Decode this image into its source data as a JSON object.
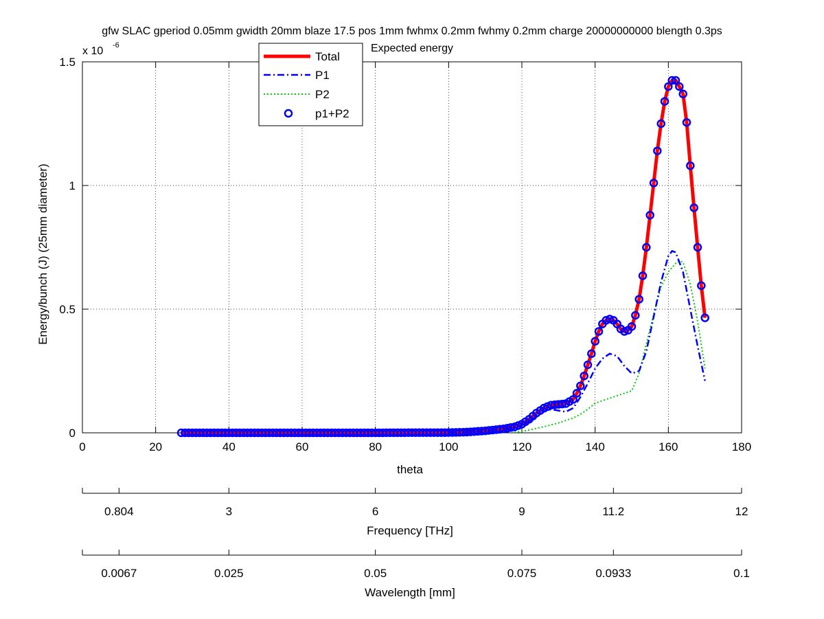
{
  "chart_data": {
    "type": "line",
    "title_line1": "gfw SLAC gperiod 0.05mm gwidth 20mm blaze 17.5 pos 1mm fwhmx 0.2mm fwhmy 0.2mm charge 20000000000 blength 0.3ps",
    "title_line2": "Expected energy",
    "xlabel": "theta",
    "ylabel": "Energy/bunch (J) (25mm diameter)",
    "y_exponent_label": "x 10",
    "y_exponent_power": "-6",
    "xlim": [
      0,
      180
    ],
    "ylim": [
      0,
      1.5
    ],
    "x_ticks": [
      0,
      20,
      40,
      60,
      80,
      100,
      120,
      140,
      160,
      180
    ],
    "y_ticks": [
      0,
      0.5,
      1,
      1.5
    ],
    "y_tick_labels": [
      "0",
      "0.5",
      "1",
      "1.5"
    ],
    "grid": true,
    "legend_position": "top-center",
    "legend": [
      {
        "label": "Total",
        "style": "solid-thick",
        "color": "#ff0000"
      },
      {
        "label": "P1",
        "style": "dash-dot",
        "color": "#0000ff"
      },
      {
        "label": "P2",
        "style": "dotted",
        "color": "#00cc00"
      },
      {
        "label": "p1+P2",
        "style": "circle-markers",
        "color": "#0000ff"
      }
    ],
    "series": [
      {
        "name": "Total",
        "color": "#ff0000",
        "x": [
          27,
          40,
          60,
          80,
          100,
          105,
          110,
          115,
          118,
          120,
          122,
          124,
          126,
          128,
          130,
          132,
          134,
          135,
          136,
          137,
          138,
          139,
          140,
          141,
          142,
          143,
          144,
          145,
          146,
          147,
          148,
          149,
          150,
          151,
          152,
          153,
          154,
          155,
          156,
          157,
          158,
          159,
          160,
          161,
          162,
          163,
          164,
          165,
          166,
          167,
          168,
          169,
          170
        ],
        "y": [
          0,
          0,
          0,
          0,
          0.001,
          0.003,
          0.008,
          0.016,
          0.024,
          0.035,
          0.055,
          0.08,
          0.1,
          0.112,
          0.115,
          0.118,
          0.135,
          0.16,
          0.19,
          0.23,
          0.275,
          0.32,
          0.37,
          0.41,
          0.44,
          0.455,
          0.46,
          0.455,
          0.44,
          0.42,
          0.41,
          0.415,
          0.43,
          0.475,
          0.54,
          0.635,
          0.75,
          0.88,
          1.01,
          1.14,
          1.25,
          1.34,
          1.4,
          1.425,
          1.425,
          1.4,
          1.37,
          1.255,
          1.08,
          0.91,
          0.75,
          0.595,
          0.465
        ]
      },
      {
        "name": "P1",
        "color": "#0000ff",
        "x": [
          100,
          105,
          110,
          115,
          118,
          120,
          122,
          124,
          126,
          128,
          130,
          132,
          134,
          136,
          138,
          140,
          142,
          144,
          146,
          148,
          150,
          152,
          154,
          156,
          158,
          160,
          161,
          162,
          164,
          166,
          168,
          170
        ],
        "y": [
          0.001,
          0.003,
          0.008,
          0.016,
          0.022,
          0.03,
          0.045,
          0.065,
          0.085,
          0.095,
          0.09,
          0.085,
          0.1,
          0.145,
          0.2,
          0.26,
          0.3,
          0.32,
          0.31,
          0.27,
          0.24,
          0.25,
          0.33,
          0.47,
          0.61,
          0.715,
          0.735,
          0.73,
          0.65,
          0.5,
          0.35,
          0.21
        ]
      },
      {
        "name": "P2",
        "color": "#00cc00",
        "x": [
          118,
          120,
          122,
          124,
          126,
          128,
          130,
          132,
          134,
          136,
          138,
          140,
          142,
          144,
          146,
          148,
          150,
          152,
          154,
          156,
          158,
          160,
          162,
          163,
          164,
          166,
          168,
          170
        ],
        "y": [
          0.002,
          0.006,
          0.012,
          0.018,
          0.025,
          0.032,
          0.04,
          0.05,
          0.06,
          0.075,
          0.095,
          0.12,
          0.13,
          0.14,
          0.15,
          0.16,
          0.17,
          0.24,
          0.36,
          0.48,
          0.59,
          0.65,
          0.685,
          0.695,
          0.69,
          0.6,
          0.45,
          0.26
        ]
      }
    ],
    "marker_series": {
      "name": "p1+P2",
      "color": "#0000ff",
      "x_start": 27,
      "x_step": 1,
      "x_end": 170
    },
    "freq_axis": {
      "label": "Frequency [THz]",
      "ticks": [
        {
          "theta": 10,
          "label": "0.804"
        },
        {
          "theta": 40,
          "label": "3"
        },
        {
          "theta": 80,
          "label": "6"
        },
        {
          "theta": 120,
          "label": "9"
        },
        {
          "theta": 145,
          "label": "11.2"
        },
        {
          "theta": 180,
          "label": "12"
        }
      ]
    },
    "wavelength_axis": {
      "label": "Wavelength [mm]",
      "ticks": [
        {
          "theta": 10,
          "label": "0.0067"
        },
        {
          "theta": 40,
          "label": "0.025"
        },
        {
          "theta": 80,
          "label": "0.05"
        },
        {
          "theta": 120,
          "label": "0.075"
        },
        {
          "theta": 145,
          "label": "0.0933"
        },
        {
          "theta": 180,
          "label": "0.1"
        }
      ]
    }
  }
}
